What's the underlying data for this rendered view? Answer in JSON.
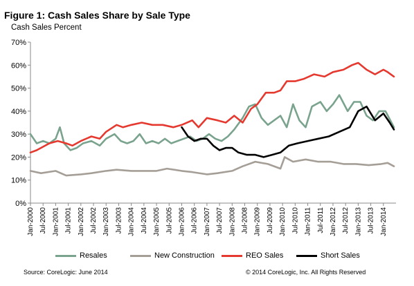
{
  "chart_data": {
    "type": "line",
    "title": "Figure 1: Cash Sales Share by Sale Type",
    "ylabel": "Cash Sales Percent",
    "ylim": [
      0,
      70
    ],
    "y_ticks": [
      "0%",
      "10%",
      "20%",
      "30%",
      "40%",
      "50%",
      "60%",
      "70%"
    ],
    "x_labels": [
      "Jan-2000",
      "Jul-2000",
      "Jan-2001",
      "Jul-2001",
      "Jan-2002",
      "Jul-2002",
      "Jan-2003",
      "Jul-2003",
      "Jan-2004",
      "Jul-2004",
      "Jan-2005",
      "Jul-2005",
      "Jan-2006",
      "Jul-2006",
      "Jan-2007",
      "Jul-2007",
      "Jan-2008",
      "Jul-2008",
      "Jan-2009",
      "Jul-2009",
      "Jan-2010",
      "Jul-2010",
      "Jan-2011",
      "Jul-2011",
      "Jan-2012",
      "Jul-2012",
      "Jan-2013",
      "Jul-2013",
      "Jan-2014"
    ],
    "x_range": [
      "2000-01",
      "2014-06"
    ],
    "grid": false,
    "legend_position": "bottom",
    "series": [
      {
        "name": "Resales",
        "color": "#7aa38e",
        "points": [
          [
            "2000-01",
            30
          ],
          [
            "2000-04",
            26
          ],
          [
            "2000-07",
            27
          ],
          [
            "2000-10",
            26
          ],
          [
            "2001-01",
            28
          ],
          [
            "2001-03",
            33
          ],
          [
            "2001-05",
            26
          ],
          [
            "2001-08",
            23
          ],
          [
            "2001-11",
            24
          ],
          [
            "2002-02",
            26
          ],
          [
            "2002-06",
            27
          ],
          [
            "2002-10",
            25
          ],
          [
            "2003-01",
            28
          ],
          [
            "2003-05",
            30
          ],
          [
            "2003-08",
            27
          ],
          [
            "2003-11",
            26
          ],
          [
            "2004-02",
            27
          ],
          [
            "2004-05",
            30
          ],
          [
            "2004-08",
            26
          ],
          [
            "2004-11",
            27
          ],
          [
            "2005-02",
            26
          ],
          [
            "2005-05",
            28
          ],
          [
            "2005-08",
            26
          ],
          [
            "2005-11",
            27
          ],
          [
            "2006-02",
            28
          ],
          [
            "2006-05",
            29
          ],
          [
            "2006-08",
            27
          ],
          [
            "2006-11",
            28
          ],
          [
            "2007-02",
            30
          ],
          [
            "2007-05",
            28
          ],
          [
            "2007-08",
            27
          ],
          [
            "2007-11",
            29
          ],
          [
            "2008-02",
            32
          ],
          [
            "2008-06",
            37
          ],
          [
            "2008-09",
            42
          ],
          [
            "2008-12",
            43
          ],
          [
            "2009-03",
            37
          ],
          [
            "2009-06",
            34
          ],
          [
            "2009-09",
            36
          ],
          [
            "2009-12",
            38
          ],
          [
            "2010-03",
            33
          ],
          [
            "2010-06",
            43
          ],
          [
            "2010-09",
            36
          ],
          [
            "2010-12",
            33
          ],
          [
            "2011-03",
            42
          ],
          [
            "2011-07",
            44
          ],
          [
            "2011-10",
            40
          ],
          [
            "2012-01",
            43
          ],
          [
            "2012-04",
            47
          ],
          [
            "2012-08",
            40
          ],
          [
            "2012-11",
            44
          ],
          [
            "2013-02",
            44
          ],
          [
            "2013-05",
            38
          ],
          [
            "2013-08",
            36
          ],
          [
            "2013-11",
            40
          ],
          [
            "2014-02",
            40
          ],
          [
            "2014-06",
            33
          ]
        ]
      },
      {
        "name": "New Construction",
        "color": "#a59e97",
        "points": [
          [
            "2000-01",
            14
          ],
          [
            "2000-06",
            13
          ],
          [
            "2001-01",
            14
          ],
          [
            "2001-06",
            12
          ],
          [
            "2002-01",
            12.5
          ],
          [
            "2002-06",
            13
          ],
          [
            "2003-01",
            14
          ],
          [
            "2003-06",
            14.5
          ],
          [
            "2004-01",
            14
          ],
          [
            "2004-06",
            14
          ],
          [
            "2005-01",
            14
          ],
          [
            "2005-06",
            15
          ],
          [
            "2006-01",
            14
          ],
          [
            "2006-06",
            13.5
          ],
          [
            "2007-01",
            12.5
          ],
          [
            "2007-06",
            13
          ],
          [
            "2008-01",
            14
          ],
          [
            "2008-06",
            16
          ],
          [
            "2008-12",
            18
          ],
          [
            "2009-06",
            17
          ],
          [
            "2009-12",
            15
          ],
          [
            "2010-02",
            20
          ],
          [
            "2010-06",
            18
          ],
          [
            "2010-12",
            19
          ],
          [
            "2011-06",
            18
          ],
          [
            "2011-12",
            18
          ],
          [
            "2012-06",
            17
          ],
          [
            "2012-12",
            17
          ],
          [
            "2013-06",
            16.5
          ],
          [
            "2013-12",
            17
          ],
          [
            "2014-03",
            17.5
          ],
          [
            "2014-06",
            16
          ]
        ]
      },
      {
        "name": "REO Sales",
        "color": "#e5392f",
        "points": [
          [
            "2000-01",
            22
          ],
          [
            "2000-04",
            23
          ],
          [
            "2000-10",
            26
          ],
          [
            "2001-02",
            27
          ],
          [
            "2001-06",
            26
          ],
          [
            "2001-09",
            25
          ],
          [
            "2002-01",
            27
          ],
          [
            "2002-06",
            29
          ],
          [
            "2002-10",
            28
          ],
          [
            "2003-01",
            31
          ],
          [
            "2003-06",
            34
          ],
          [
            "2003-09",
            33
          ],
          [
            "2004-01",
            34
          ],
          [
            "2004-06",
            35
          ],
          [
            "2004-11",
            34
          ],
          [
            "2005-04",
            34
          ],
          [
            "2005-09",
            33
          ],
          [
            "2006-01",
            34
          ],
          [
            "2006-06",
            36
          ],
          [
            "2006-09",
            33
          ],
          [
            "2007-01",
            37
          ],
          [
            "2007-06",
            36
          ],
          [
            "2007-10",
            35
          ],
          [
            "2008-02",
            38
          ],
          [
            "2008-06",
            35
          ],
          [
            "2008-10",
            41
          ],
          [
            "2009-01",
            43
          ],
          [
            "2009-05",
            48
          ],
          [
            "2009-09",
            48
          ],
          [
            "2009-12",
            49
          ],
          [
            "2010-03",
            53
          ],
          [
            "2010-07",
            53
          ],
          [
            "2010-11",
            54
          ],
          [
            "2011-04",
            56
          ],
          [
            "2011-09",
            55
          ],
          [
            "2012-01",
            57
          ],
          [
            "2012-06",
            58
          ],
          [
            "2012-10",
            60
          ],
          [
            "2013-01",
            61
          ],
          [
            "2013-05",
            58
          ],
          [
            "2013-09",
            56
          ],
          [
            "2014-01",
            58
          ],
          [
            "2014-03",
            57
          ],
          [
            "2014-06",
            55
          ]
        ]
      },
      {
        "name": "Short Sales",
        "color": "#000000",
        "points": [
          [
            "2006-01",
            33
          ],
          [
            "2006-04",
            29
          ],
          [
            "2006-07",
            27
          ],
          [
            "2006-10",
            28
          ],
          [
            "2007-01",
            28
          ],
          [
            "2007-04",
            25
          ],
          [
            "2007-07",
            23
          ],
          [
            "2007-10",
            24
          ],
          [
            "2008-01",
            24
          ],
          [
            "2008-04",
            22
          ],
          [
            "2008-08",
            21
          ],
          [
            "2008-12",
            21
          ],
          [
            "2009-04",
            20
          ],
          [
            "2009-08",
            21
          ],
          [
            "2009-12",
            22
          ],
          [
            "2010-04",
            25
          ],
          [
            "2010-08",
            26
          ],
          [
            "2011-01",
            27
          ],
          [
            "2011-06",
            28
          ],
          [
            "2011-11",
            29
          ],
          [
            "2012-04",
            31
          ],
          [
            "2012-09",
            33
          ],
          [
            "2013-01",
            40
          ],
          [
            "2013-05",
            42
          ],
          [
            "2013-09",
            36
          ],
          [
            "2014-01",
            39
          ],
          [
            "2014-04",
            35
          ],
          [
            "2014-06",
            32
          ]
        ]
      }
    ]
  },
  "footer": {
    "source": "Source: CoreLogic: June 2014",
    "copyright": "© 2014 CoreLogic, Inc. All Rights Reserved"
  }
}
